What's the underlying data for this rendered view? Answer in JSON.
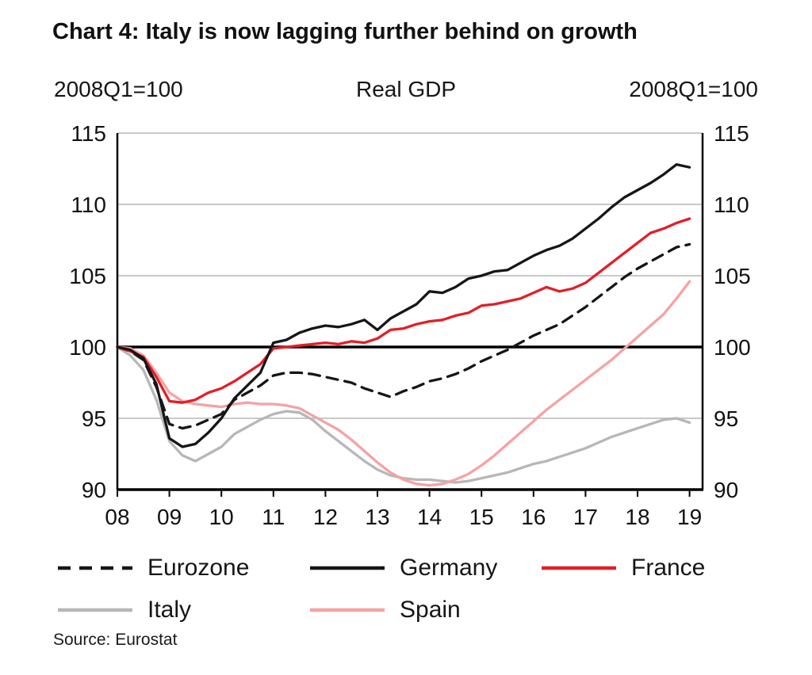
{
  "title": "Chart 4: Italy is now lagging further behind on growth",
  "subtitle": {
    "left": "2008Q1=100",
    "center": "Real GDP",
    "right": "2008Q1=100"
  },
  "source": "Source: Eurostat",
  "chart_data": {
    "type": "line",
    "title": "Real GDP",
    "index_note": "2008Q1=100",
    "x_start": 2008.0,
    "x_step": 0.25,
    "xlim": [
      2008.0,
      2019.25
    ],
    "ylim": [
      90,
      115
    ],
    "y_ticks": [
      90,
      95,
      100,
      105,
      110,
      115
    ],
    "baseline": 100,
    "grid": "horizontal",
    "grid_color": "#c9c9c9",
    "axis_color": "#000000",
    "legend_position": "bottom",
    "x_ticks": [
      {
        "value": 2008,
        "label": "08"
      },
      {
        "value": 2009,
        "label": "09"
      },
      {
        "value": 2010,
        "label": "10"
      },
      {
        "value": 2011,
        "label": "11"
      },
      {
        "value": 2012,
        "label": "12"
      },
      {
        "value": 2013,
        "label": "13"
      },
      {
        "value": 2014,
        "label": "14"
      },
      {
        "value": 2015,
        "label": "15"
      },
      {
        "value": 2016,
        "label": "16"
      },
      {
        "value": 2017,
        "label": "17"
      },
      {
        "value": 2018,
        "label": "18"
      },
      {
        "value": 2019,
        "label": "19"
      }
    ],
    "draw_order": [
      "Italy",
      "Spain",
      "Eurozone",
      "France",
      "Germany"
    ],
    "series": [
      {
        "name": "Eurozone",
        "color": "#161616",
        "dash": "14 9",
        "values": [
          100,
          99.7,
          99.1,
          97.2,
          94.6,
          94.3,
          94.5,
          94.9,
          95.3,
          96.3,
          96.8,
          97.3,
          98.0,
          98.2,
          98.2,
          98.1,
          97.9,
          97.7,
          97.5,
          97.1,
          96.8,
          96.5,
          96.9,
          97.2,
          97.6,
          97.8,
          98.1,
          98.5,
          99.0,
          99.4,
          99.8,
          100.3,
          100.8,
          101.2,
          101.6,
          102.2,
          102.8,
          103.5,
          104.2,
          104.9,
          105.5,
          106.0,
          106.5,
          107.0,
          107.2
        ]
      },
      {
        "name": "Germany",
        "color": "#161616",
        "dash": null,
        "values": [
          100,
          99.8,
          99.2,
          97.4,
          93.6,
          93.0,
          93.2,
          94.0,
          95.0,
          96.4,
          97.3,
          98.2,
          100.3,
          100.5,
          101.0,
          101.3,
          101.5,
          101.4,
          101.6,
          101.9,
          101.2,
          102.0,
          102.5,
          103.0,
          103.9,
          103.8,
          104.2,
          104.8,
          105.0,
          105.3,
          105.4,
          105.9,
          106.4,
          106.8,
          107.1,
          107.6,
          108.3,
          109.0,
          109.8,
          110.5,
          111.0,
          111.5,
          112.1,
          112.8,
          112.6
        ]
      },
      {
        "name": "France",
        "color": "#e41e26",
        "dash": null,
        "values": [
          100,
          99.7,
          99.3,
          97.9,
          96.2,
          96.1,
          96.3,
          96.8,
          97.1,
          97.6,
          98.2,
          98.8,
          99.9,
          100.0,
          100.1,
          100.2,
          100.3,
          100.2,
          100.4,
          100.3,
          100.6,
          101.2,
          101.3,
          101.6,
          101.8,
          101.9,
          102.2,
          102.4,
          102.9,
          103.0,
          103.2,
          103.4,
          103.8,
          104.2,
          103.9,
          104.1,
          104.5,
          105.2,
          105.9,
          106.6,
          107.3,
          108.0,
          108.3,
          108.7,
          109.0
        ]
      },
      {
        "name": "Italy",
        "color": "#b7b7b7",
        "dash": null,
        "values": [
          100,
          99.4,
          98.4,
          96.3,
          93.4,
          92.4,
          92.0,
          92.5,
          93.0,
          93.9,
          94.4,
          94.9,
          95.3,
          95.5,
          95.4,
          94.9,
          94.1,
          93.4,
          92.7,
          92.0,
          91.4,
          91.0,
          90.8,
          90.7,
          90.7,
          90.6,
          90.5,
          90.6,
          90.8,
          91.0,
          91.2,
          91.5,
          91.8,
          92.0,
          92.3,
          92.6,
          92.9,
          93.3,
          93.7,
          94.0,
          94.3,
          94.6,
          94.9,
          95.0,
          94.7
        ]
      },
      {
        "name": "Spain",
        "color": "#f6a2a3",
        "dash": null,
        "values": [
          100,
          99.9,
          99.4,
          98.2,
          96.8,
          96.2,
          96.0,
          95.9,
          95.8,
          96.0,
          96.1,
          96.0,
          96.0,
          95.9,
          95.7,
          95.2,
          94.7,
          94.2,
          93.5,
          92.7,
          91.9,
          91.2,
          90.7,
          90.4,
          90.3,
          90.4,
          90.7,
          91.1,
          91.7,
          92.4,
          93.2,
          94.0,
          94.8,
          95.6,
          96.3,
          97.0,
          97.7,
          98.4,
          99.1,
          99.9,
          100.7,
          101.5,
          102.3,
          103.4,
          104.6
        ]
      }
    ]
  }
}
